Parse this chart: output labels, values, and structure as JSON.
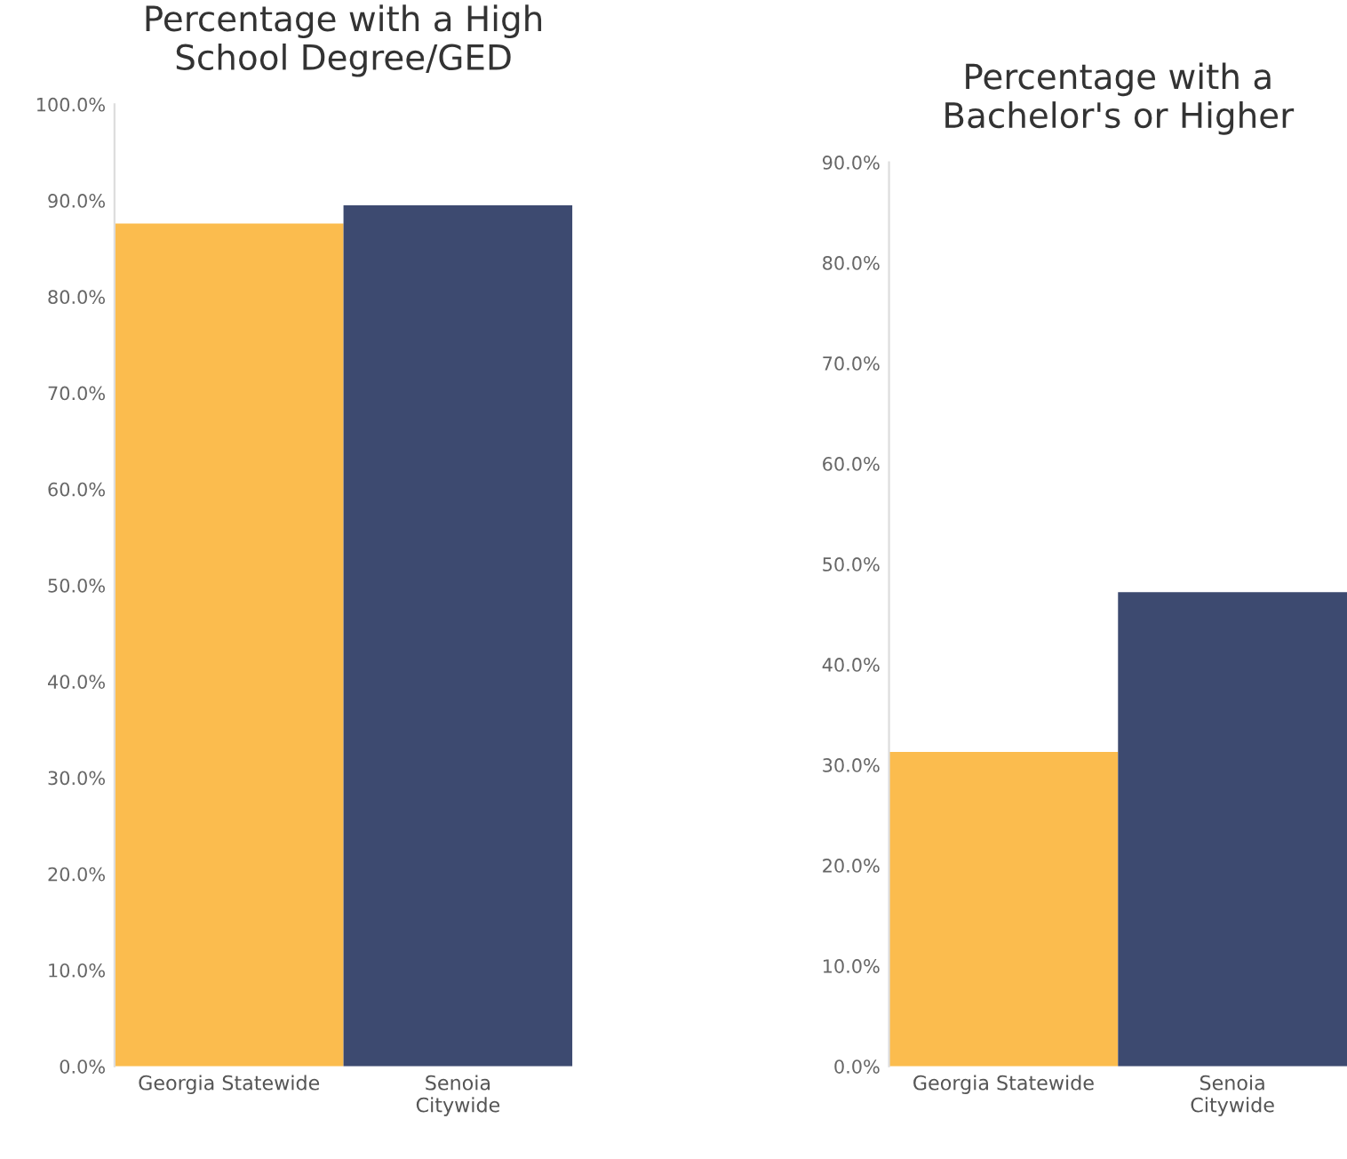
{
  "chart_data": [
    {
      "type": "bar",
      "title": "Percentage with a High\nSchool Degree/GED",
      "categories": [
        "Georgia Statewide",
        "Senoia\nCitywide"
      ],
      "values": [
        87.6,
        89.5
      ],
      "colors": [
        "#fbbc4e",
        "#3d4a70"
      ],
      "ylim": [
        0,
        100
      ],
      "yticks": [
        {
          "value": 0,
          "label": "0.0%"
        },
        {
          "value": 10,
          "label": "10.0%"
        },
        {
          "value": 20,
          "label": "20.0%"
        },
        {
          "value": 30,
          "label": "30.0%"
        },
        {
          "value": 40,
          "label": "40.0%"
        },
        {
          "value": 50,
          "label": "50.0%"
        },
        {
          "value": 60,
          "label": "60.0%"
        },
        {
          "value": 70,
          "label": "70.0%"
        },
        {
          "value": 80,
          "label": "80.0%"
        },
        {
          "value": 90,
          "label": "90.0%"
        },
        {
          "value": 100,
          "label": "100.0%"
        }
      ],
      "grid": false
    },
    {
      "type": "bar",
      "title": "Percentage with a\nBachelor's or Higher",
      "categories": [
        "Georgia Statewide",
        "Senoia\nCitywide"
      ],
      "values": [
        31.3,
        47.2
      ],
      "colors": [
        "#fbbc4e",
        "#3d4a70"
      ],
      "ylim": [
        0,
        90
      ],
      "yticks": [
        {
          "value": 0,
          "label": "0.0%"
        },
        {
          "value": 10,
          "label": "10.0%"
        },
        {
          "value": 20,
          "label": "20.0%"
        },
        {
          "value": 30,
          "label": "30.0%"
        },
        {
          "value": 40,
          "label": "40.0%"
        },
        {
          "value": 50,
          "label": "50.0%"
        },
        {
          "value": 60,
          "label": "60.0%"
        },
        {
          "value": 70,
          "label": "70.0%"
        },
        {
          "value": 80,
          "label": "80.0%"
        },
        {
          "value": 90,
          "label": "90.0%"
        }
      ],
      "grid": false
    }
  ]
}
